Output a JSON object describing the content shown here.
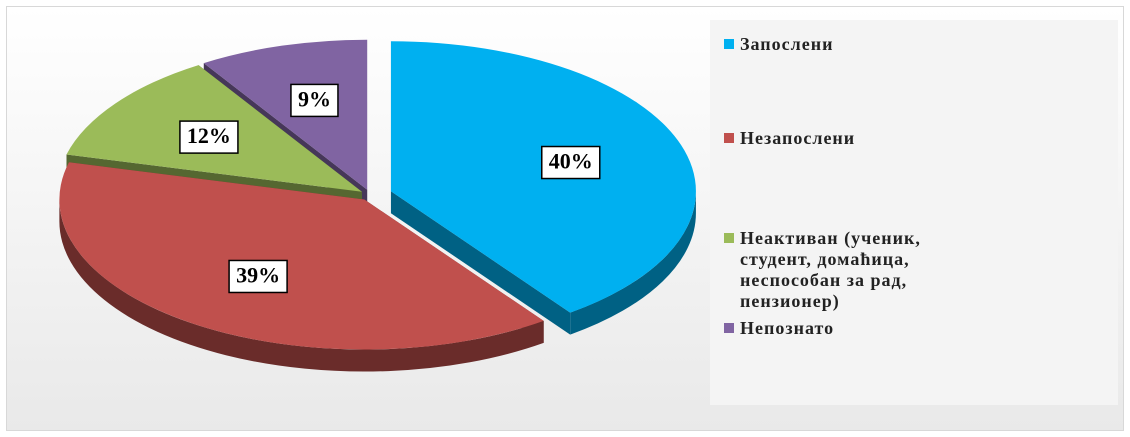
{
  "chart_data": {
    "type": "pie",
    "categories": [
      "Запослени",
      "Незапослени",
      "Неактиван (ученик, студент, домаћица, неспособан за рад, пензионер)",
      "Непознато"
    ],
    "values": [
      40,
      39,
      12,
      9
    ],
    "value_labels": [
      "40%",
      "39%",
      "12%",
      "9%"
    ],
    "colors": [
      "#00b0f0",
      "#c0504d",
      "#9bbb59",
      "#8064a2"
    ]
  }
}
